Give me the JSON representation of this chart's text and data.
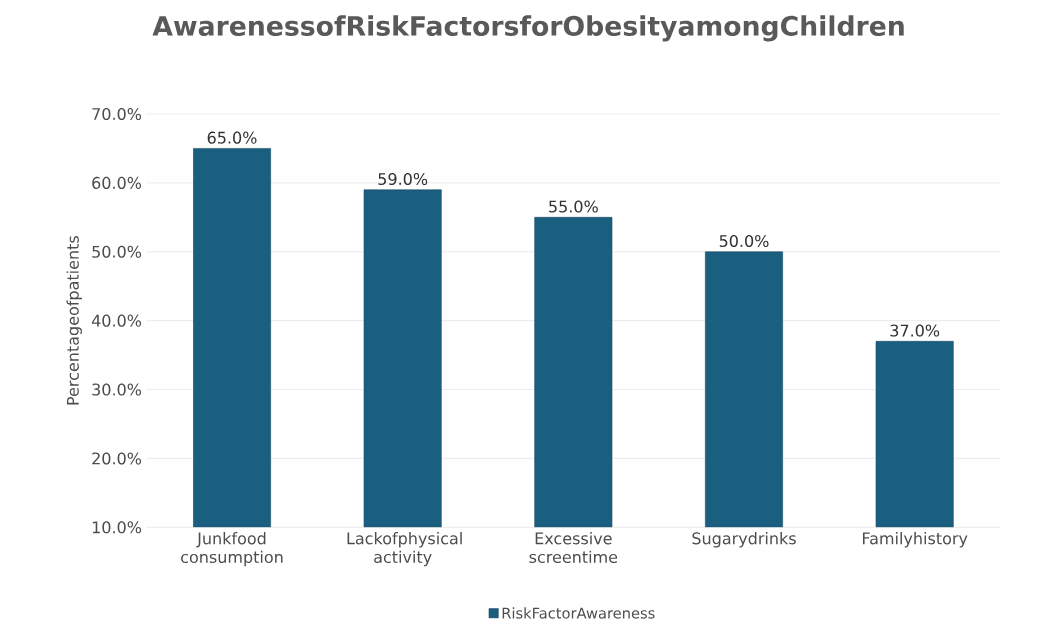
{
  "chart_data": {
    "type": "bar",
    "title": "AwarenessofRiskFactorsforObesityamongChildren",
    "ylabel": "Percentageofpatients",
    "categories": [
      "Junkfood consumption",
      "Lackofphysical activity",
      "Excessive screentime",
      "Sugarydrinks",
      "Familyhistory"
    ],
    "series": [
      {
        "name": "RiskFactorAwareness",
        "color": "#1a5e80",
        "values": [
          65,
          59,
          55,
          50,
          37
        ],
        "value_labels": [
          "65.0%",
          "59.0%",
          "55.0%",
          "50.0%",
          "37.0%"
        ]
      }
    ],
    "ylim": [
      10,
      70
    ],
    "yticks": [
      {
        "value": 10,
        "label": "10.0%"
      },
      {
        "value": 20,
        "label": "20.0%"
      },
      {
        "value": 30,
        "label": "30.0%"
      },
      {
        "value": 40,
        "label": "40.0%"
      },
      {
        "value": 50,
        "label": "50.0%"
      },
      {
        "value": 60,
        "label": "60.0%"
      },
      {
        "value": 70,
        "label": "70.0%"
      }
    ],
    "grid": "y",
    "legend": "bottom"
  }
}
